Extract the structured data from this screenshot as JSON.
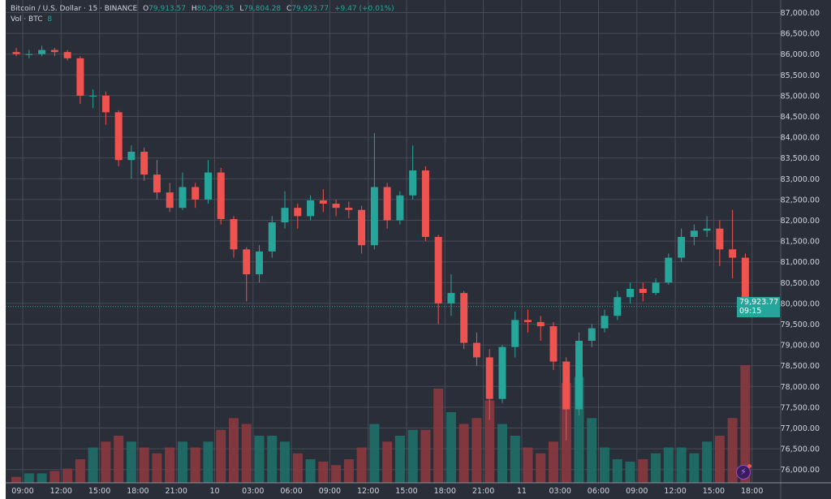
{
  "legend": {
    "symbol": "Bitcoin / U.S. Dollar · 15 · BINANCE",
    "o_label": "O",
    "o_value": "79,913.57",
    "h_label": "H",
    "h_value": "80,209.35",
    "l_label": "L",
    "l_value": "79,804.28",
    "c_label": "C",
    "c_value": "79,923.77",
    "change": "+9.47 (+0.01%)",
    "volume_label": "Vol · BTC",
    "volume_value": "8"
  },
  "price_tag": {
    "price": "79,923.77",
    "countdown": "09:15"
  },
  "colors": {
    "background": "#2a2e39",
    "grid": "#474b57",
    "up": "#26a69a",
    "down": "#ef5350",
    "vol_up": "#1f6f68",
    "vol_down": "#8a3a3f"
  },
  "icons": {
    "bottom_right": "lightning-icon"
  },
  "chart_data": {
    "type": "candlestick",
    "interval_note": "15",
    "ylim": [
      75800,
      87200
    ],
    "grid": true,
    "last_price": 79923.77,
    "y_ticks": [
      "87,000.00",
      "86,500.00",
      "86,000.00",
      "85,500.00",
      "85,000.00",
      "84,500.00",
      "84,000.00",
      "83,500.00",
      "83,000.00",
      "82,500.00",
      "82,000.00",
      "81,500.00",
      "81,000.00",
      "80,500.00",
      "80,000.00",
      "79,500.00",
      "79,000.00",
      "78,500.00",
      "78,000.00",
      "77,500.00",
      "77,000.00",
      "76,500.00",
      "76,000.00"
    ],
    "x_ticks": [
      "09:00",
      "12:00",
      "15:00",
      "18:00",
      "21:00",
      "10",
      "03:00",
      "06:00",
      "09:00",
      "12:00",
      "15:00",
      "18:00",
      "21:00",
      "11",
      "03:00",
      "06:00",
      "09:00",
      "12:00",
      "15:00",
      "18:00"
    ],
    "candle_columns": [
      "time",
      "open",
      "high",
      "low",
      "close",
      "volume_relative"
    ],
    "candles": [
      [
        "9 08:00",
        86050,
        86150,
        85950,
        86000,
        5
      ],
      [
        "9 09:00",
        86000,
        86100,
        85900,
        86000,
        8
      ],
      [
        "9 10:00",
        86000,
        86200,
        85950,
        86100,
        8
      ],
      [
        "9 11:00",
        86100,
        86150,
        85950,
        86050,
        10
      ],
      [
        "9 12:00",
        86050,
        86100,
        85850,
        85900,
        12
      ],
      [
        "9 13:00",
        85900,
        85950,
        84800,
        85000,
        20
      ],
      [
        "9 14:00",
        85000,
        85150,
        84700,
        85000,
        30
      ],
      [
        "9 15:00",
        85000,
        85100,
        84300,
        84600,
        35
      ],
      [
        "9 16:00",
        84600,
        84650,
        83300,
        83450,
        40
      ],
      [
        "9 17:00",
        83450,
        83800,
        83000,
        83650,
        35
      ],
      [
        "9 18:00",
        83650,
        83750,
        82950,
        83100,
        30
      ],
      [
        "9 19:00",
        83100,
        83450,
        82500,
        82670,
        25
      ],
      [
        "9 20:00",
        82670,
        82900,
        82200,
        82300,
        30
      ],
      [
        "9 21:00",
        82300,
        83150,
        82250,
        82800,
        35
      ],
      [
        "9 22:00",
        82800,
        82900,
        82300,
        82500,
        30
      ],
      [
        "9 23:00",
        82500,
        83450,
        82400,
        83150,
        35
      ],
      [
        "10 00:00",
        83150,
        83260,
        81900,
        82030,
        45
      ],
      [
        "10 01:00",
        82030,
        82100,
        81100,
        81300,
        55
      ],
      [
        "10 02:00",
        81300,
        81350,
        80050,
        80700,
        50
      ],
      [
        "10 03:00",
        80700,
        81400,
        80500,
        81250,
        40
      ],
      [
        "10 04:00",
        81250,
        82100,
        81100,
        81950,
        40
      ],
      [
        "10 05:00",
        81950,
        82700,
        81800,
        82300,
        35
      ],
      [
        "10 06:00",
        82300,
        82400,
        81800,
        82100,
        25
      ],
      [
        "10 07:00",
        82100,
        82600,
        82000,
        82480,
        20
      ],
      [
        "10 08:00",
        82480,
        82750,
        82200,
        82400,
        18
      ],
      [
        "10 09:00",
        82400,
        82500,
        82100,
        82300,
        15
      ],
      [
        "10 10:00",
        82300,
        82450,
        82050,
        82250,
        20
      ],
      [
        "10 11:00",
        82250,
        82350,
        81200,
        81400,
        30
      ],
      [
        "10 12:00",
        81400,
        84100,
        81300,
        82800,
        50
      ],
      [
        "10 13:00",
        82800,
        82900,
        81800,
        82000,
        35
      ],
      [
        "10 14:00",
        82000,
        82700,
        81900,
        82600,
        40
      ],
      [
        "10 15:00",
        82600,
        83800,
        82500,
        83200,
        45
      ],
      [
        "10 16:00",
        83200,
        83300,
        81500,
        81600,
        45
      ],
      [
        "10 17:00",
        81600,
        81650,
        79500,
        80000,
        80
      ],
      [
        "10 18:00",
        80000,
        80700,
        79700,
        80250,
        60
      ],
      [
        "10 19:00",
        80250,
        80300,
        78900,
        79050,
        50
      ],
      [
        "10 20:00",
        79050,
        79300,
        78500,
        78700,
        55
      ],
      [
        "10 21:00",
        78700,
        78900,
        77200,
        77700,
        70
      ],
      [
        "10 22:00",
        77700,
        79000,
        77600,
        78950,
        50
      ],
      [
        "10 23:00",
        78950,
        79800,
        78700,
        79600,
        40
      ],
      [
        "11 00:00",
        79600,
        79850,
        79300,
        79550,
        30
      ],
      [
        "11 01:00",
        79550,
        79700,
        79100,
        79450,
        25
      ],
      [
        "11 02:00",
        79450,
        79550,
        78400,
        78600,
        35
      ],
      [
        "11 03:00",
        78600,
        78700,
        76700,
        77450,
        85
      ],
      [
        "11 04:00",
        77450,
        79300,
        77300,
        79100,
        90
      ],
      [
        "11 05:00",
        79100,
        79500,
        78950,
        79400,
        55
      ],
      [
        "11 06:00",
        79400,
        79850,
        79300,
        79700,
        30
      ],
      [
        "11 07:00",
        79700,
        80300,
        79600,
        80150,
        20
      ],
      [
        "11 08:00",
        80150,
        80500,
        80000,
        80350,
        18
      ],
      [
        "11 09:00",
        80350,
        80500,
        80050,
        80250,
        20
      ],
      [
        "11 10:00",
        80250,
        80600,
        80200,
        80500,
        25
      ],
      [
        "11 11:00",
        80500,
        81200,
        80450,
        81100,
        30
      ],
      [
        "11 12:00",
        81100,
        81800,
        81000,
        81600,
        30
      ],
      [
        "11 13:00",
        81600,
        81900,
        81400,
        81750,
        25
      ],
      [
        "11 14:00",
        81750,
        82100,
        81600,
        81800,
        35
      ],
      [
        "11 15:00",
        81800,
        82000,
        80900,
        81300,
        40
      ],
      [
        "11 16:00",
        81300,
        82250,
        80600,
        81100,
        55
      ],
      [
        "11 17:00",
        81100,
        81200,
        79800,
        79923.77,
        100
      ]
    ]
  }
}
